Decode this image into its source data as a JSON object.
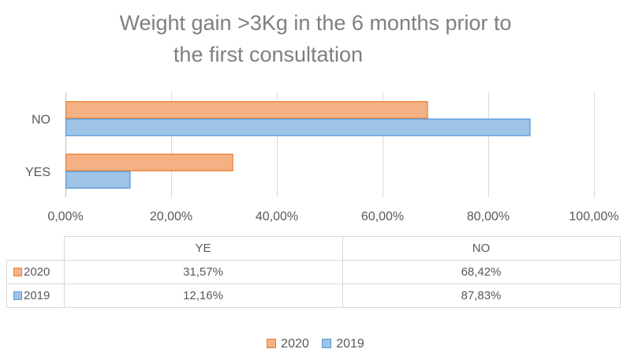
{
  "chart_data": {
    "type": "bar",
    "orientation": "horizontal",
    "title_line1": "Weight gain >3Kg in the 6 months prior to",
    "title_line2": "the first consultation",
    "categories": [
      "YES",
      "NO"
    ],
    "table_headers": [
      "YE",
      "NO"
    ],
    "series": [
      {
        "name": "2020",
        "values": [
          31.57,
          68.42
        ],
        "labels": [
          "31,57%",
          "68,42%"
        ],
        "fill": "#f4b183",
        "stroke": "#ed7d31"
      },
      {
        "name": "2019",
        "values": [
          12.16,
          87.83
        ],
        "labels": [
          "12,16%",
          "87,83%"
        ],
        "fill": "#9dc3e6",
        "stroke": "#5b9bd5"
      }
    ],
    "xlim": [
      0,
      100
    ],
    "x_ticks": [
      0,
      20,
      40,
      60,
      80,
      100
    ],
    "x_tick_labels": [
      "0,00%",
      "20,00%",
      "40,00%",
      "60,00%",
      "80,00%",
      "100,00%"
    ],
    "grid": true,
    "legend_position": "bottom"
  }
}
